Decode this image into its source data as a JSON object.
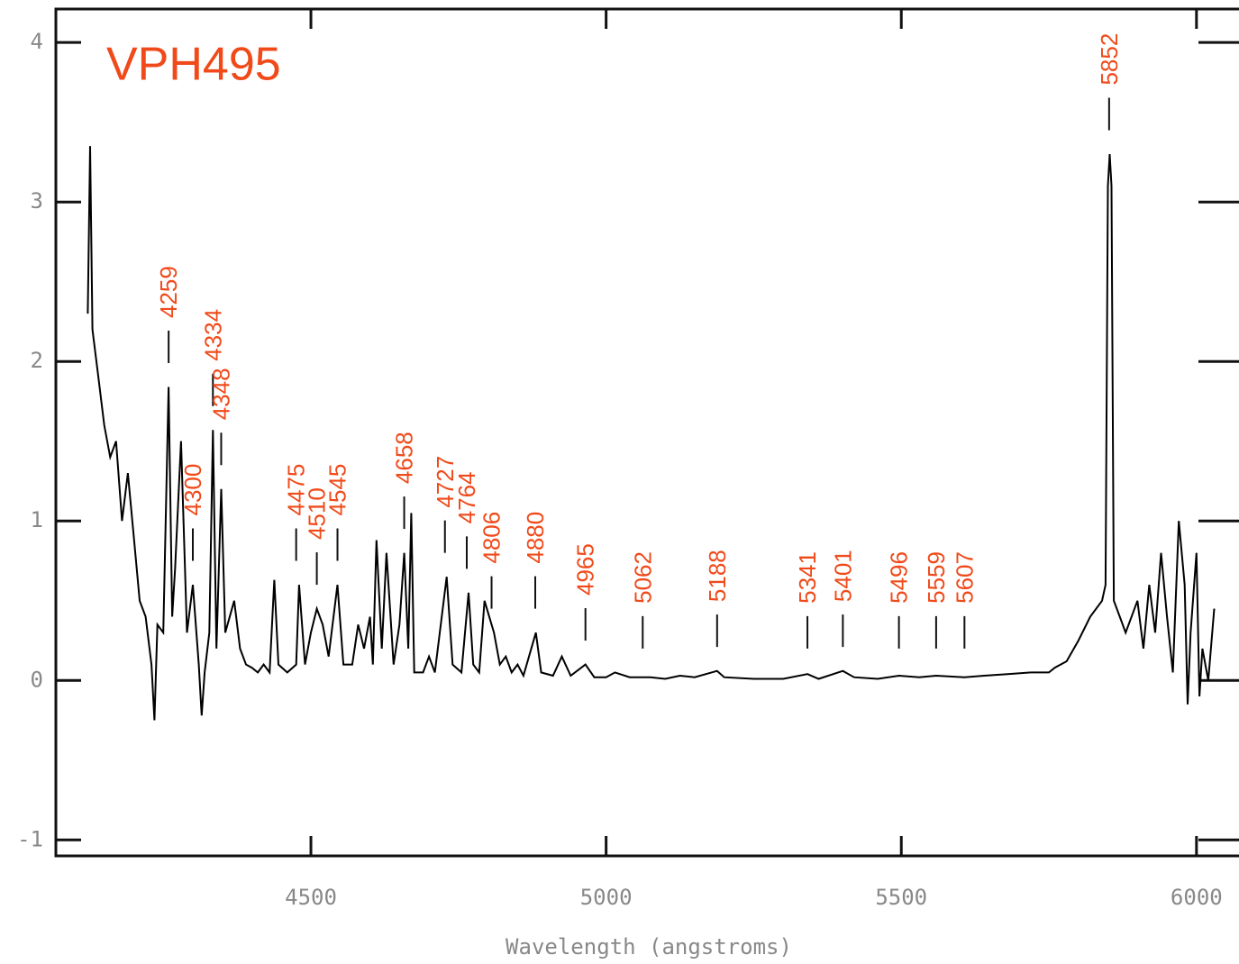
{
  "chart_data": {
    "type": "line",
    "title": "VPH495",
    "title_color": "#f04a1a",
    "x_label": "Wavelength (angstroms)",
    "color": "#000000",
    "axis_color": "#111111",
    "tick_label_color": "#888888",
    "xlim": [
      4068,
      6072
    ],
    "ylim": [
      -1.1,
      4.21
    ],
    "xticks": [
      4500,
      5000,
      5500,
      6000
    ],
    "yticks": [
      -1,
      0,
      1,
      2,
      3,
      4
    ],
    "x": [
      4122,
      4126,
      4130,
      4140,
      4150,
      4160,
      4170,
      4180,
      4190,
      4200,
      4210,
      4220,
      4230,
      4235,
      4240,
      4250,
      4259,
      4265,
      4270,
      4280,
      4290,
      4300,
      4310,
      4315,
      4320,
      4328,
      4334,
      4340,
      4348,
      4355,
      4370,
      4380,
      4390,
      4400,
      4410,
      4420,
      4430,
      4438,
      4445,
      4460,
      4475,
      4480,
      4490,
      4500,
      4510,
      4520,
      4530,
      4545,
      4555,
      4570,
      4580,
      4590,
      4600,
      4605,
      4611,
      4620,
      4628,
      4640,
      4650,
      4658,
      4665,
      4670,
      4675,
      4690,
      4700,
      4710,
      4730,
      4740,
      4755,
      4767,
      4775,
      4785,
      4794,
      4810,
      4820,
      4830,
      4840,
      4850,
      4860,
      4881,
      4890,
      4910,
      4925,
      4940,
      4965,
      4980,
      5000,
      5015,
      5040,
      5075,
      5100,
      5125,
      5150,
      5188,
      5200,
      5250,
      5300,
      5341,
      5360,
      5401,
      5420,
      5460,
      5496,
      5530,
      5559,
      5607,
      5640,
      5680,
      5720,
      5750,
      5760,
      5780,
      5800,
      5820,
      5840,
      5846,
      5850,
      5853,
      5856,
      5860,
      5870,
      5880,
      5900,
      5910,
      5920,
      5930,
      5940,
      5950,
      5960,
      5970,
      5980,
      5985,
      5990,
      6000,
      6005,
      6010,
      6020,
      6030
    ],
    "values": [
      2.3,
      3.35,
      2.2,
      1.9,
      1.6,
      1.4,
      1.5,
      1.0,
      1.3,
      0.9,
      0.5,
      0.4,
      0.1,
      -0.25,
      0.35,
      0.3,
      1.84,
      0.4,
      0.7,
      1.5,
      0.3,
      0.6,
      0.1,
      -0.22,
      0.05,
      0.3,
      1.57,
      0.2,
      1.2,
      0.3,
      0.5,
      0.2,
      0.1,
      0.08,
      0.05,
      0.1,
      0.05,
      0.63,
      0.1,
      0.05,
      0.1,
      0.6,
      0.1,
      0.3,
      0.45,
      0.35,
      0.15,
      0.6,
      0.1,
      0.1,
      0.35,
      0.2,
      0.4,
      0.1,
      0.88,
      0.2,
      0.8,
      0.1,
      0.35,
      0.8,
      0.2,
      1.05,
      0.05,
      0.05,
      0.15,
      0.05,
      0.65,
      0.1,
      0.05,
      0.55,
      0.1,
      0.05,
      0.5,
      0.3,
      0.1,
      0.15,
      0.05,
      0.1,
      0.03,
      0.3,
      0.05,
      0.03,
      0.15,
      0.03,
      0.1,
      0.02,
      0.02,
      0.05,
      0.02,
      0.02,
      0.01,
      0.03,
      0.02,
      0.06,
      0.02,
      0.01,
      0.01,
      0.04,
      0.01,
      0.06,
      0.02,
      0.01,
      0.03,
      0.02,
      0.03,
      0.02,
      0.03,
      0.04,
      0.05,
      0.05,
      0.08,
      0.12,
      0.25,
      0.4,
      0.5,
      0.6,
      3.1,
      3.3,
      3.1,
      0.5,
      0.4,
      0.3,
      0.5,
      0.2,
      0.6,
      0.3,
      0.8,
      0.4,
      0.05,
      1.0,
      0.6,
      -0.15,
      0.3,
      0.8,
      -0.1,
      0.2,
      0.0,
      0.45
    ],
    "lines": [
      4259,
      4300,
      4334,
      4348,
      4475,
      4510,
      4545,
      4658,
      4727,
      4764,
      4806,
      4880,
      4965,
      5062,
      5188,
      5341,
      5401,
      5496,
      5559,
      5607,
      5852
    ]
  }
}
